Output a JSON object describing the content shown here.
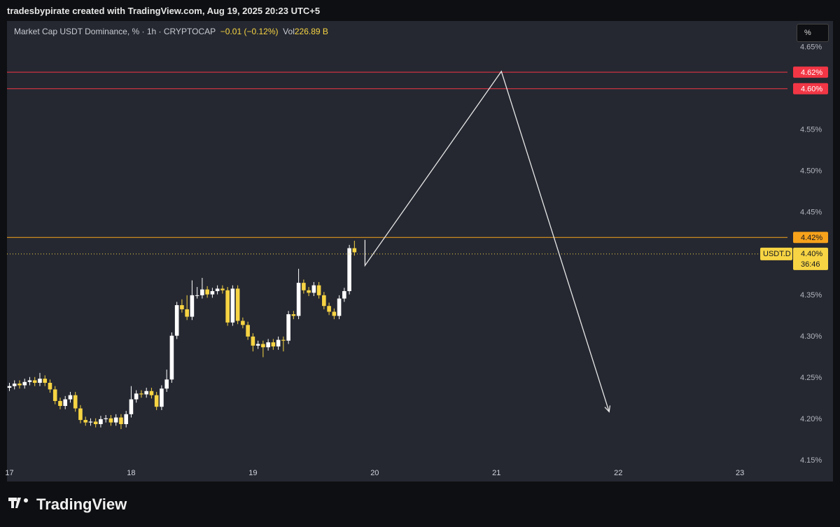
{
  "header": {
    "credit": "tradesbypirate created with TradingView.com, Aug 19, 2025 20:23 UTC+5"
  },
  "toolbar": {
    "scale": "%"
  },
  "footer": {
    "brand": "TradingView"
  },
  "chart_data": {
    "type": "candlestick",
    "title": "Market Cap USDT Dominance, % · 1h · CRYPTOCAP",
    "change": "−0.01 (−0.12%)",
    "volume_label": "Vol",
    "volume": "226.89 B",
    "up_color": "#ffffff",
    "down_color": "#f7d443",
    "x": [
      17,
      17.0417,
      17.0833,
      17.125,
      17.1667,
      17.2083,
      17.25,
      17.2917,
      17.3333,
      17.375,
      17.4167,
      17.4583,
      17.5,
      17.5417,
      17.5833,
      17.625,
      17.6667,
      17.7083,
      17.75,
      17.7917,
      17.8333,
      17.875,
      17.9167,
      17.9583,
      18,
      18.0417,
      18.0833,
      18.125,
      18.1667,
      18.2083,
      18.25,
      18.2917,
      18.3333,
      18.375,
      18.4167,
      18.4583,
      18.5,
      18.5417,
      18.5833,
      18.625,
      18.6667,
      18.7083,
      18.75,
      18.7917,
      18.8333,
      18.875,
      18.9167,
      18.9583,
      19,
      19.0417,
      19.0833,
      19.125,
      19.1667,
      19.2083,
      19.25,
      19.2917,
      19.3333,
      19.375,
      19.4167,
      19.4583,
      19.5,
      19.5417,
      19.5833,
      19.625,
      19.6667,
      19.7083,
      19.75,
      19.7917,
      19.8333
    ],
    "open": [
      4.238,
      4.24,
      4.243,
      4.241,
      4.245,
      4.247,
      4.244,
      4.249,
      4.244,
      4.236,
      4.222,
      4.216,
      4.224,
      4.229,
      4.213,
      4.199,
      4.196,
      4.197,
      4.194,
      4.2,
      4.201,
      4.196,
      4.202,
      4.194,
      4.206,
      4.224,
      4.231,
      4.23,
      4.234,
      4.229,
      4.215,
      4.237,
      4.248,
      4.301,
      4.338,
      4.333,
      4.324,
      4.35,
      4.35,
      4.357,
      4.351,
      4.355,
      4.358,
      4.356,
      4.317,
      4.358,
      4.319,
      4.314,
      4.3,
      4.289,
      4.291,
      4.287,
      4.293,
      4.288,
      4.296,
      4.295,
      4.327,
      4.325,
      4.365,
      4.356,
      4.353,
      4.362,
      4.35,
      4.337,
      4.33,
      4.325,
      4.346,
      4.355,
      4.407
    ],
    "high": [
      4.244,
      4.247,
      4.247,
      4.249,
      4.251,
      4.251,
      4.256,
      4.253,
      4.248,
      4.24,
      4.226,
      4.228,
      4.233,
      4.233,
      4.217,
      4.203,
      4.201,
      4.201,
      4.204,
      4.205,
      4.205,
      4.206,
      4.206,
      4.21,
      4.24,
      4.235,
      4.235,
      4.238,
      4.238,
      4.233,
      4.241,
      4.26,
      4.305,
      4.342,
      4.345,
      4.35,
      4.368,
      4.36,
      4.371,
      4.361,
      4.359,
      4.362,
      4.362,
      4.36,
      4.362,
      4.362,
      4.323,
      4.318,
      4.304,
      4.295,
      4.295,
      4.297,
      4.297,
      4.3,
      4.3,
      4.331,
      4.331,
      4.382,
      4.369,
      4.36,
      4.366,
      4.366,
      4.354,
      4.341,
      4.334,
      4.35,
      4.359,
      4.411,
      4.416
    ],
    "low": [
      4.234,
      4.236,
      4.237,
      4.237,
      4.241,
      4.24,
      4.24,
      4.24,
      4.232,
      4.218,
      4.212,
      4.212,
      4.22,
      4.209,
      4.195,
      4.192,
      4.192,
      4.19,
      4.19,
      4.196,
      4.192,
      4.192,
      4.188,
      4.19,
      4.202,
      4.22,
      4.226,
      4.226,
      4.225,
      4.211,
      4.211,
      4.233,
      4.244,
      4.297,
      4.329,
      4.32,
      4.32,
      4.346,
      4.346,
      4.347,
      4.347,
      4.351,
      4.352,
      4.313,
      4.313,
      4.315,
      4.31,
      4.296,
      4.282,
      4.285,
      4.275,
      4.283,
      4.284,
      4.284,
      4.282,
      4.291,
      4.321,
      4.321,
      4.352,
      4.349,
      4.349,
      4.346,
      4.333,
      4.326,
      4.321,
      4.321,
      4.342,
      4.351,
      4.398
    ],
    "close": [
      4.24,
      4.243,
      4.241,
      4.245,
      4.247,
      4.244,
      4.249,
      4.244,
      4.236,
      4.222,
      4.216,
      4.224,
      4.229,
      4.213,
      4.199,
      4.196,
      4.197,
      4.194,
      4.2,
      4.201,
      4.196,
      4.202,
      4.194,
      4.206,
      4.224,
      4.231,
      4.23,
      4.234,
      4.229,
      4.215,
      4.237,
      4.248,
      4.301,
      4.338,
      4.333,
      4.324,
      4.35,
      4.35,
      4.357,
      4.351,
      4.355,
      4.358,
      4.356,
      4.317,
      4.358,
      4.319,
      4.314,
      4.3,
      4.289,
      4.291,
      4.287,
      4.293,
      4.288,
      4.296,
      4.295,
      4.327,
      4.325,
      4.365,
      4.356,
      4.353,
      4.362,
      4.35,
      4.337,
      4.33,
      4.325,
      4.346,
      4.355,
      4.407,
      4.402
    ],
    "xlim": [
      16.98,
      23.39
    ],
    "xticks": [
      17,
      18,
      19,
      20,
      21,
      22,
      23
    ],
    "ylim": [
      4.144,
      4.682
    ],
    "yticks": [
      {
        "value": 4.15,
        "label": "4.15%"
      },
      {
        "value": 4.2,
        "label": "4.20%"
      },
      {
        "value": 4.25,
        "label": "4.25%"
      },
      {
        "value": 4.3,
        "label": "4.30%"
      },
      {
        "value": 4.35,
        "label": "4.35%"
      },
      {
        "value": 4.4,
        "label": "4.40%"
      },
      {
        "value": 4.45,
        "label": "4.45%"
      },
      {
        "value": 4.5,
        "label": "4.50%"
      },
      {
        "value": 4.55,
        "label": "4.55%"
      },
      {
        "value": 4.6,
        "label": "4.60%"
      },
      {
        "value": 4.65,
        "label": "4.65%"
      }
    ],
    "hlines": [
      {
        "value": 4.62,
        "label": "4.62%",
        "color": "#f23645"
      },
      {
        "value": 4.6,
        "label": "4.60%",
        "color": "#f23645"
      },
      {
        "value": 4.42,
        "label": "4.42%",
        "color": "#f7a21b"
      }
    ],
    "last_price": {
      "value": 4.4,
      "label": "4.40%",
      "symbol": "USDT.D",
      "countdown": "36:46",
      "color": "#f7d443"
    },
    "drawing": {
      "x": [
        19.92,
        19.92,
        21.04,
        21.925
      ],
      "y": [
        4.417,
        4.386,
        4.621,
        4.209
      ],
      "color": "#e8e8e8"
    }
  }
}
